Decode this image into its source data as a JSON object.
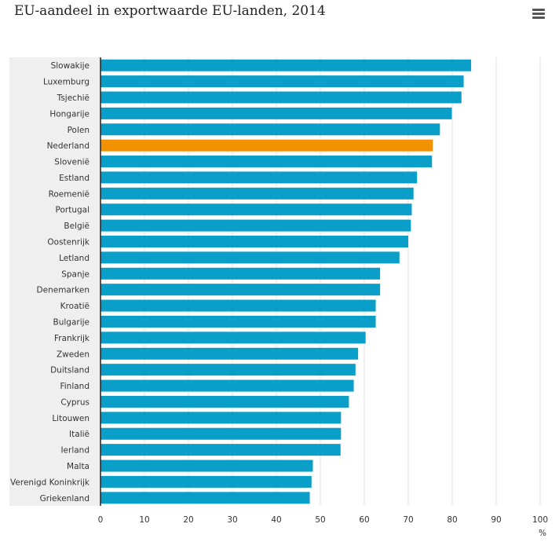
{
  "chart_data": {
    "type": "bar",
    "orientation": "horizontal",
    "title": "EU-aandeel in exportwaarde EU-landen, 2014",
    "x_unit": "%",
    "xlim": [
      0,
      100
    ],
    "x_ticks": [
      "0",
      "10",
      "20",
      "30",
      "40",
      "50",
      "60",
      "70",
      "80",
      "90",
      "100"
    ],
    "grid": true,
    "categories": [
      "Slowakije",
      "Luxemburg",
      "Tsjechië",
      "Hongarije",
      "Polen",
      "Nederland",
      "Slovenië",
      "Estland",
      "Roemenië",
      "Portugal",
      "België",
      "Oostenrijk",
      "Letland",
      "Spanje",
      "Denemarken",
      "Kroatië",
      "Bulgarije",
      "Frankrijk",
      "Zweden",
      "Duitsland",
      "Finland",
      "Cyprus",
      "Litouwen",
      "Italië",
      "Ierland",
      "Malta",
      "Verenigd Koninkrijk",
      "Griekenland"
    ],
    "values": [
      84.3,
      82.6,
      82.1,
      79.9,
      77.2,
      75.6,
      75.4,
      72.0,
      71.2,
      70.8,
      70.6,
      70.0,
      68.0,
      63.6,
      63.6,
      62.6,
      62.6,
      60.3,
      58.6,
      58.0,
      57.6,
      56.5,
      54.7,
      54.7,
      54.6,
      48.3,
      48.0,
      47.6
    ],
    "highlight": "Nederland",
    "colors": {
      "bar": "#0a9fc9",
      "highlight": "#f39200",
      "grid": "#e3e3e3",
      "label_band": "#efefef",
      "axis": "#222222"
    }
  },
  "menu": {
    "icon": "hamburger-menu-icon"
  }
}
